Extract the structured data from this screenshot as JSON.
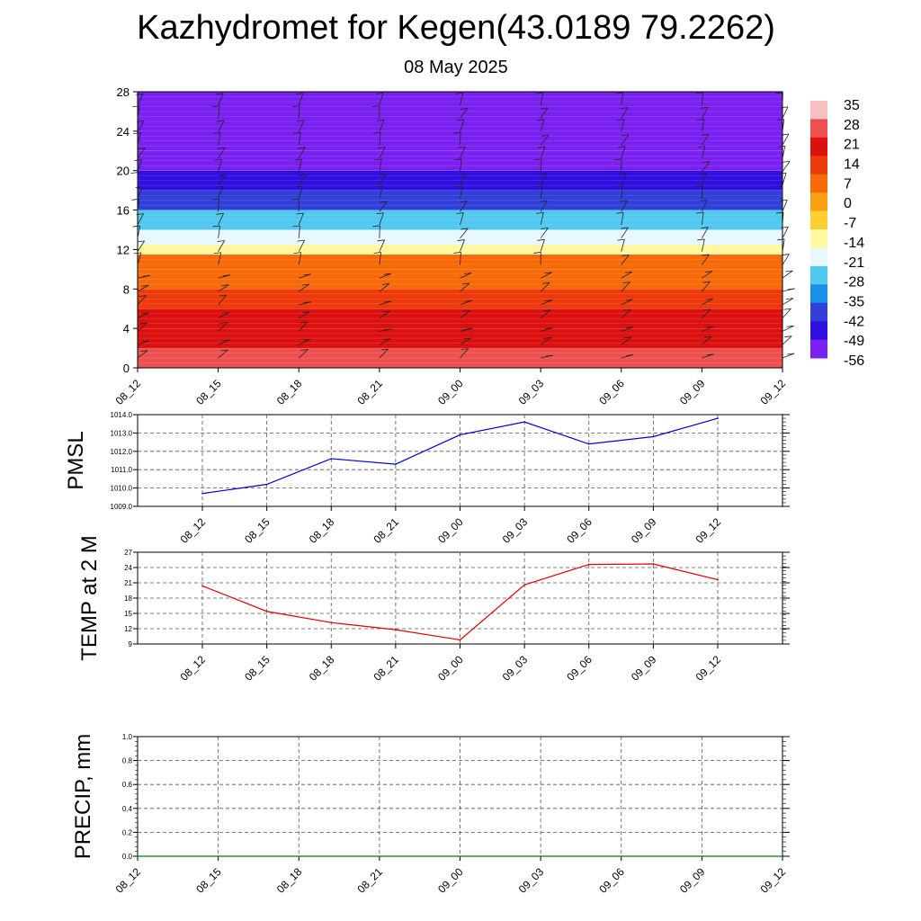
{
  "title": "Kazhydromet for Kegen(43.0189 79.2262)",
  "subtitle": "08 May 2025",
  "colors": {
    "pmsl_line": "#0000e0",
    "temp_line": "#e00000",
    "precip_line": "#008000",
    "grid": "#555555"
  },
  "chart_data": [
    {
      "type": "heatmap",
      "xlabel": "",
      "ylabel": "",
      "x_tick_labels": [
        "08_12",
        "08_15",
        "08_18",
        "08_21",
        "09_00",
        "09_03",
        "09_06",
        "09_09",
        "09_12"
      ],
      "y_ticks": [
        0,
        4,
        8,
        12,
        16,
        20,
        24,
        28
      ],
      "ylim": [
        0,
        28
      ],
      "bands": [
        {
          "from": 0,
          "to": 2,
          "value": 28
        },
        {
          "from": 2,
          "to": 4,
          "value": 24
        },
        {
          "from": 4,
          "to": 6,
          "value": 19
        },
        {
          "from": 6,
          "to": 8,
          "value": 15
        },
        {
          "from": 8,
          "to": 10,
          "value": 10
        },
        {
          "from": 10,
          "to": 11.5,
          "value": 4
        },
        {
          "from": 11.5,
          "to": 12.5,
          "value": -12
        },
        {
          "from": 12.5,
          "to": 14,
          "value": -20
        },
        {
          "from": 14,
          "to": 16,
          "value": -30
        },
        {
          "from": 16,
          "to": 18,
          "value": -40
        },
        {
          "from": 18,
          "to": 20,
          "value": -50
        },
        {
          "from": 20,
          "to": 22,
          "value": -55
        },
        {
          "from": 22,
          "to": 28,
          "value": -58
        }
      ],
      "colorbar": {
        "labels": [
          "35",
          "28",
          "21",
          "14",
          "7",
          "0",
          "-7",
          "-14",
          "-21",
          "-28",
          "-35",
          "-42",
          "-49",
          "-56"
        ],
        "colors": [
          "#f6c0c0",
          "#ee5050",
          "#dd1010",
          "#ee3a0a",
          "#f86a08",
          "#f8a010",
          "#fbd030",
          "#fff8a0",
          "#e8f8ff",
          "#50c8f0",
          "#1890e8",
          "#3040d8",
          "#3010e0",
          "#7a20f0"
        ]
      },
      "wind_barbs": "present at every x tick position"
    },
    {
      "type": "line",
      "ylabel": "PMSL",
      "x": [
        "08_12",
        "08_15",
        "08_18",
        "08_21",
        "09_00",
        "09_03",
        "09_06",
        "09_09",
        "09_12"
      ],
      "y_tick_labels": [
        "1009.0",
        "1010.0",
        "1011.0",
        "1012.0",
        "1013.0",
        "1014.0"
      ],
      "ylim": [
        1009,
        1014
      ],
      "series": [
        {
          "values": [
            1009.7,
            1010.2,
            1011.6,
            1011.3,
            1012.9,
            1013.6,
            1012.4,
            1012.8,
            1013.8
          ]
        }
      ],
      "grid": true
    },
    {
      "type": "line",
      "ylabel": "TEMP at 2 M",
      "x": [
        "08_12",
        "08_15",
        "08_18",
        "08_21",
        "09_00",
        "09_03",
        "09_06",
        "09_09",
        "09_12"
      ],
      "y_tick_labels": [
        "9",
        "12",
        "15",
        "18",
        "21",
        "24",
        "27"
      ],
      "ylim": [
        9,
        27
      ],
      "series": [
        {
          "values": [
            20.4,
            15.4,
            13.2,
            11.8,
            9.8,
            20.6,
            24.6,
            24.7,
            21.6
          ]
        }
      ],
      "grid": true
    },
    {
      "type": "line",
      "ylabel": "PRECIP, mm",
      "x": [
        "08_12",
        "08_15",
        "08_18",
        "08_21",
        "09_00",
        "09_03",
        "09_06",
        "09_09",
        "09_12"
      ],
      "y_tick_labels": [
        "0.0",
        "0.2",
        "0.4",
        "0.6",
        "0.8",
        "1.0"
      ],
      "ylim": [
        0,
        1
      ],
      "series": [
        {
          "values": [
            0,
            0,
            0,
            0,
            0,
            0,
            0,
            0,
            0
          ]
        }
      ],
      "grid": true
    }
  ]
}
